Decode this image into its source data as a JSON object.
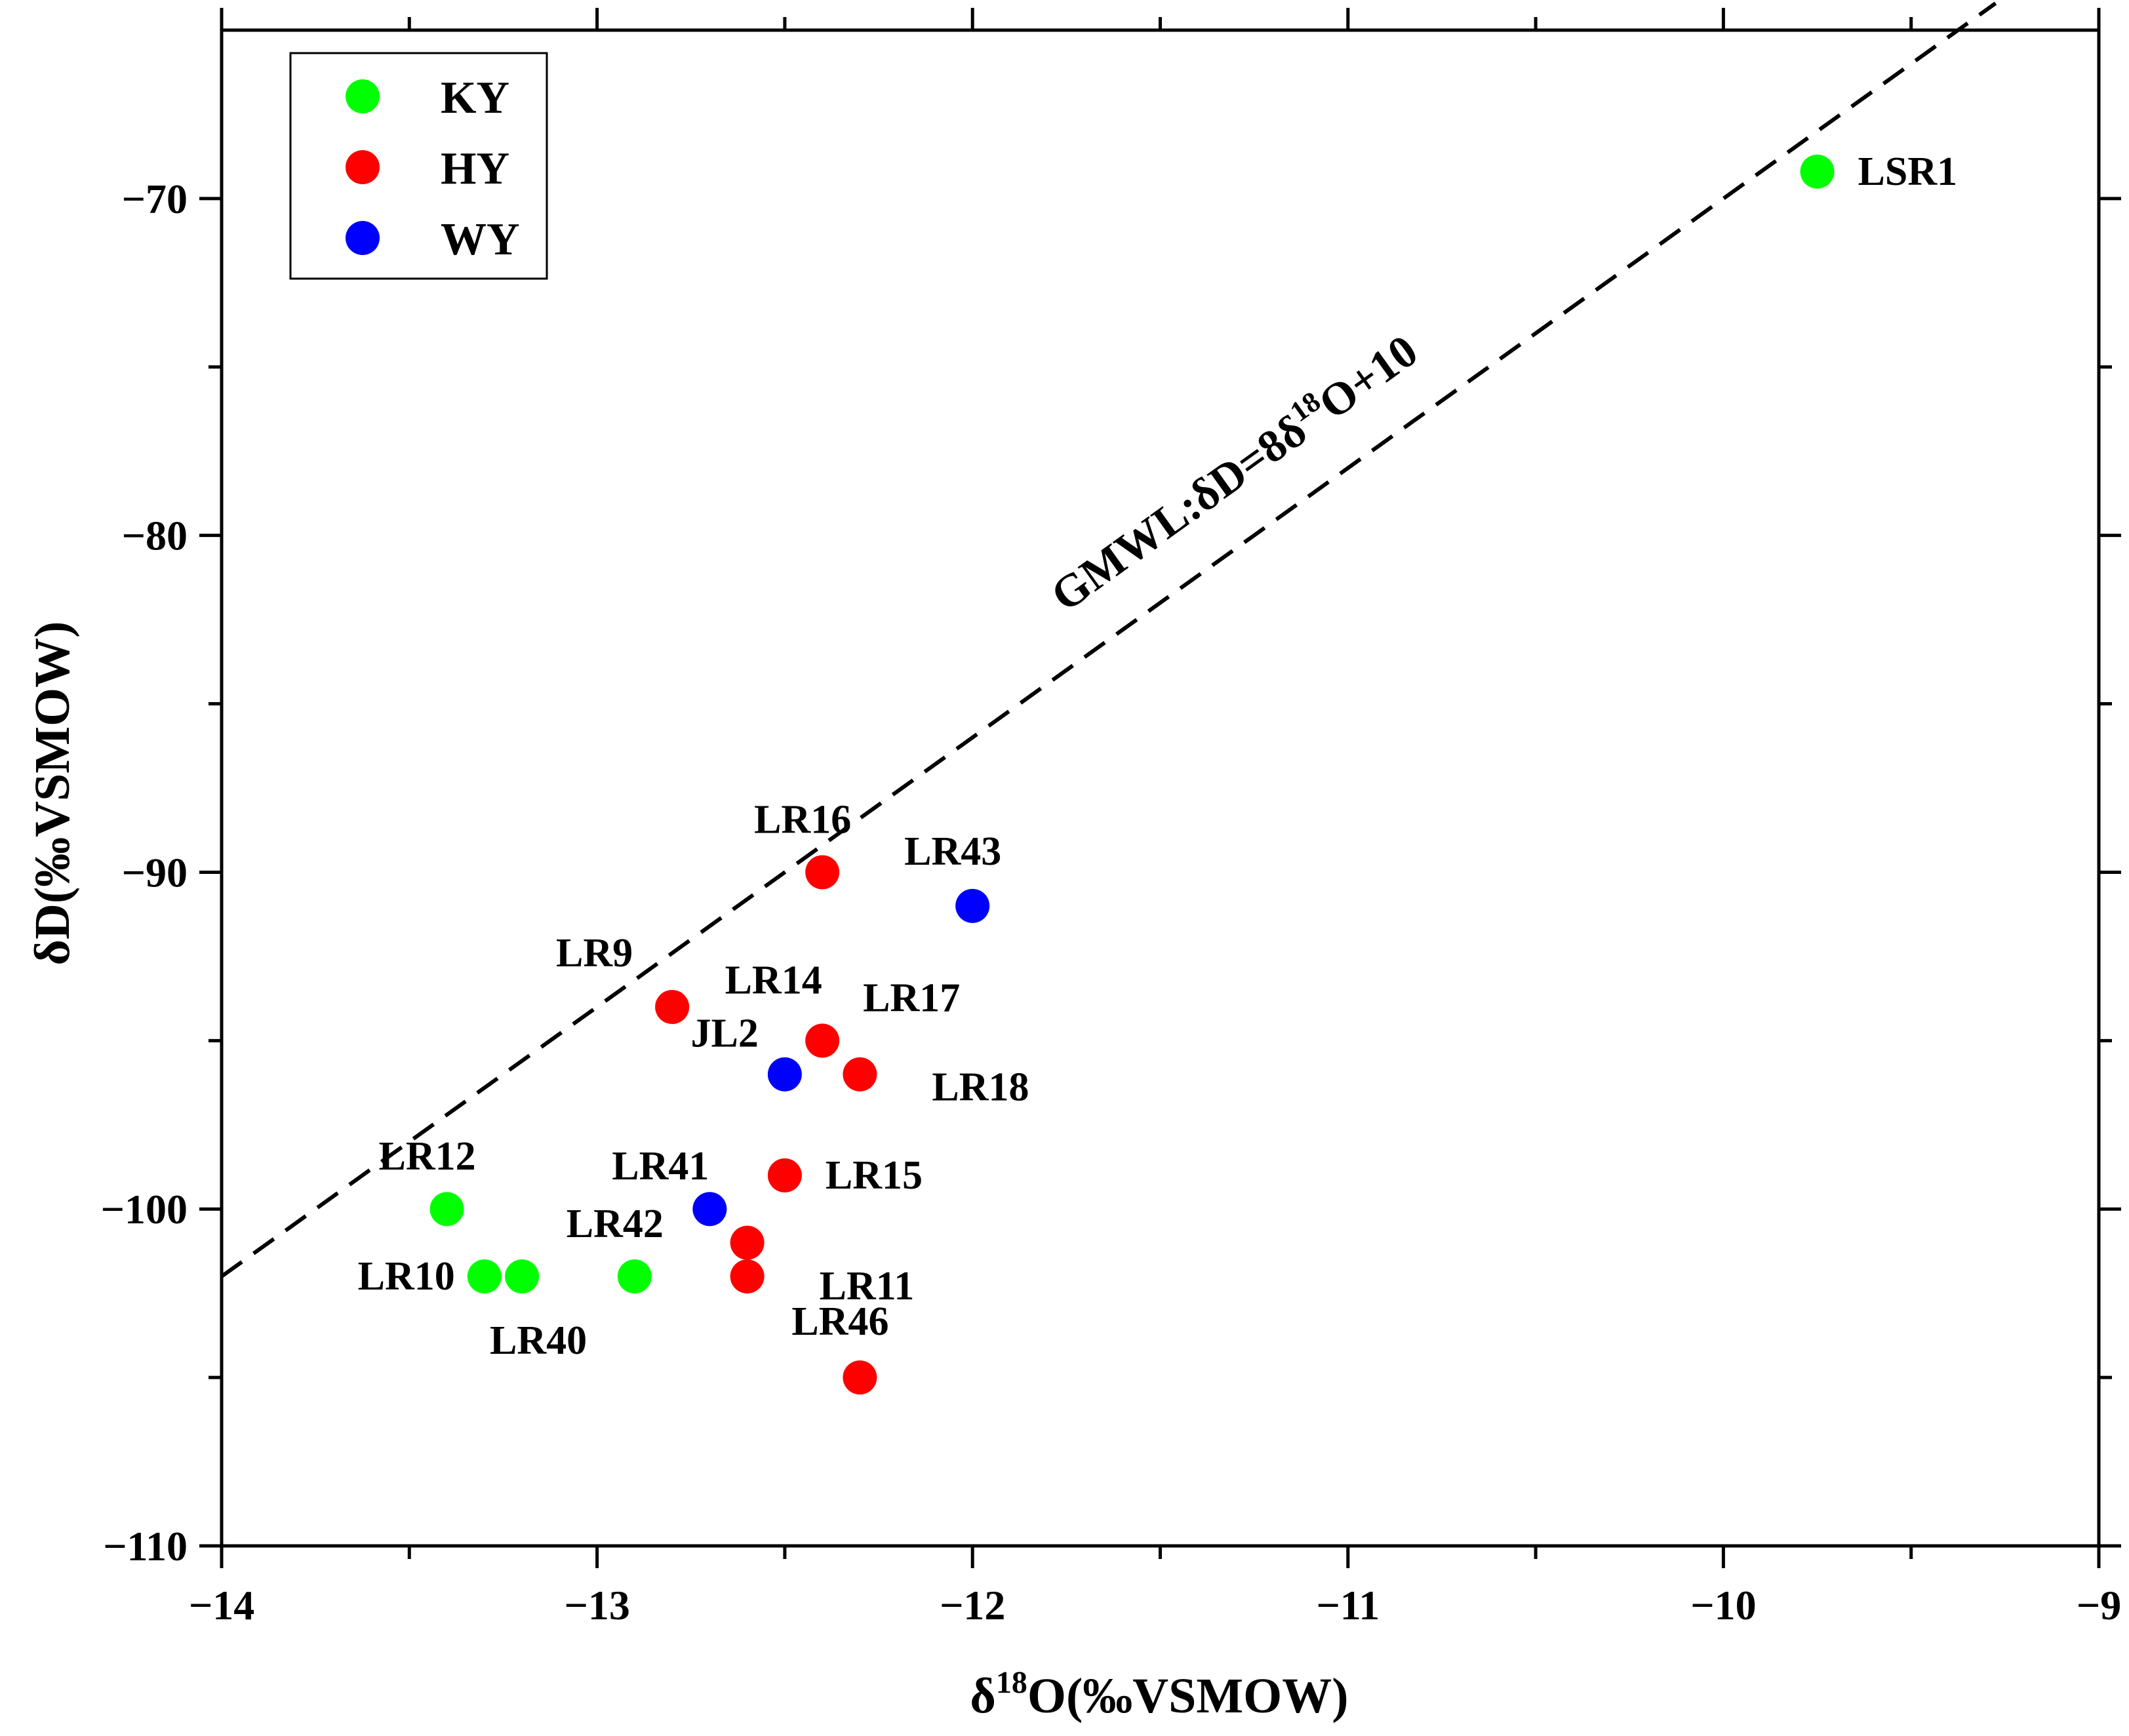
{
  "chart_data": {
    "type": "scatter",
    "title": "",
    "xlabel": "δ18O(‰VSMOW)",
    "xlabel_main": "δ",
    "xlabel_sup": "18",
    "xlabel_rest": "O(‰VSMOW)",
    "ylabel": "δD(‰VSMOW)",
    "xlim": [
      -14,
      -9
    ],
    "ylim": [
      -110,
      -65
    ],
    "xticks": [
      -14,
      -13,
      -12,
      -11,
      -10,
      -9
    ],
    "xtick_labels": [
      "−14",
      "−13",
      "−12",
      "−11",
      "−10",
      "−9"
    ],
    "yticks": [
      -110,
      -100,
      -90,
      -80,
      -70
    ],
    "ytick_labels": [
      "−110",
      "−100",
      "−90",
      "−80",
      "−70"
    ],
    "legend_position": "top-left",
    "series": [
      {
        "name": "KY",
        "color": "#00ff00",
        "points": [
          {
            "label": "LSR1",
            "x": -9.75,
            "y": -69.2
          },
          {
            "label": "LR12",
            "x": -13.4,
            "y": -100
          },
          {
            "label": "LR10",
            "x": -13.3,
            "y": -102
          },
          {
            "label": "LR40",
            "x": -13.2,
            "y": -102
          },
          {
            "label": "LR42",
            "x": -12.9,
            "y": -102
          }
        ]
      },
      {
        "name": "HY",
        "color": "#ff0000",
        "points": [
          {
            "label": "LR16",
            "x": -12.4,
            "y": -90
          },
          {
            "label": "LR9",
            "x": -12.8,
            "y": -94
          },
          {
            "label": "LR17",
            "x": -12.4,
            "y": -95
          },
          {
            "label": "LR18",
            "x": -12.3,
            "y": -96
          },
          {
            "label": "LR15",
            "x": -12.5,
            "y": -99
          },
          {
            "label": "LR14",
            "x": -12.6,
            "y": -101
          },
          {
            "label": "LR11",
            "x": -12.6,
            "y": -102
          },
          {
            "label": "LR46",
            "x": -12.3,
            "y": -105
          }
        ]
      },
      {
        "name": "WY",
        "color": "#0000ff",
        "points": [
          {
            "label": "LR43",
            "x": -12.0,
            "y": -91
          },
          {
            "label": "JL2",
            "x": -12.5,
            "y": -96
          },
          {
            "label": "LR41",
            "x": -12.7,
            "y": -100
          }
        ]
      }
    ],
    "reference_line": {
      "name": "GMWL",
      "label_main": "GMWL:δD=8δ",
      "label_sup": "18",
      "label_rest": "O+10",
      "slope": 8,
      "intercept": 10,
      "style": "dashed"
    }
  }
}
